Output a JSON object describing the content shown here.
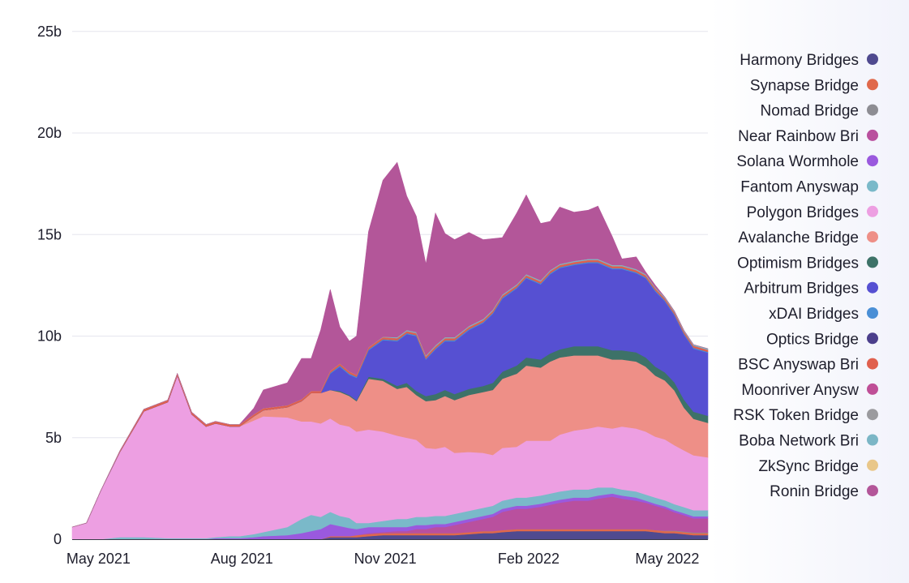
{
  "chart_data": {
    "type": "area",
    "stacked": true,
    "title": "",
    "xlabel": "",
    "ylabel": "",
    "x_range": [
      "2021-04-15",
      "2022-06-25"
    ],
    "ylim": [
      0,
      26
    ],
    "yticks": [
      {
        "value": 0,
        "label": "0"
      },
      {
        "value": 5,
        "label": "5b"
      },
      {
        "value": 10,
        "label": "10b"
      },
      {
        "value": 15,
        "label": "15b"
      },
      {
        "value": 20,
        "label": "20b"
      },
      {
        "value": 25,
        "label": "25b"
      }
    ],
    "xticks": [
      {
        "month": 0.55,
        "label": "May 2021"
      },
      {
        "month": 3.55,
        "label": "Aug 2021"
      },
      {
        "month": 6.55,
        "label": "Nov 2021"
      },
      {
        "month": 9.55,
        "label": "Feb 2022"
      },
      {
        "month": 12.45,
        "label": "May 2022"
      }
    ],
    "x_months": [
      0.0,
      0.3,
      0.6,
      1.0,
      1.5,
      2.0,
      2.2,
      2.5,
      2.8,
      3.0,
      3.3,
      3.5,
      3.8,
      4.0,
      4.5,
      4.8,
      5.0,
      5.2,
      5.4,
      5.6,
      5.8,
      5.95,
      6.2,
      6.5,
      6.8,
      7.0,
      7.2,
      7.4,
      7.6,
      7.8,
      8.0,
      8.3,
      8.6,
      8.8,
      9.0,
      9.3,
      9.5,
      9.8,
      10.0,
      10.2,
      10.5,
      10.8,
      11.0,
      11.3,
      11.5,
      11.8,
      12.0,
      12.2,
      12.4,
      12.6,
      12.8,
      13.0,
      13.3
    ],
    "series": [
      {
        "name": "Harmony Bridges",
        "color": "#4f4a8f",
        "values": [
          0,
          0,
          0,
          0,
          0,
          0,
          0,
          0,
          0,
          0,
          0,
          0,
          0,
          0,
          0,
          0,
          0,
          0,
          0.1,
          0.1,
          0.1,
          0.1,
          0.15,
          0.2,
          0.2,
          0.2,
          0.2,
          0.2,
          0.2,
          0.2,
          0.2,
          0.25,
          0.3,
          0.3,
          0.35,
          0.4,
          0.4,
          0.4,
          0.4,
          0.4,
          0.4,
          0.4,
          0.4,
          0.4,
          0.4,
          0.4,
          0.4,
          0.35,
          0.3,
          0.3,
          0.25,
          0.2,
          0.2
        ]
      },
      {
        "name": "Synapse Bridge",
        "color": "#e0694b",
        "values": [
          0,
          0,
          0,
          0,
          0,
          0,
          0,
          0,
          0,
          0,
          0,
          0,
          0,
          0,
          0,
          0,
          0,
          0,
          0.05,
          0.05,
          0.05,
          0.1,
          0.1,
          0.1,
          0.1,
          0.1,
          0.1,
          0.1,
          0.1,
          0.1,
          0.1,
          0.1,
          0.1,
          0.1,
          0.1,
          0.1,
          0.1,
          0.1,
          0.1,
          0.1,
          0.1,
          0.1,
          0.1,
          0.1,
          0.1,
          0.1,
          0.1,
          0.1,
          0.1,
          0.1,
          0.1,
          0.1,
          0.1
        ]
      },
      {
        "name": "Nomad Bridge",
        "color": "#8d8d93",
        "values": [
          0,
          0,
          0,
          0,
          0,
          0,
          0,
          0,
          0,
          0,
          0,
          0,
          0,
          0,
          0,
          0,
          0,
          0,
          0,
          0,
          0,
          0,
          0,
          0,
          0,
          0,
          0,
          0,
          0,
          0,
          0,
          0,
          0,
          0,
          0,
          0,
          0,
          0,
          0,
          0,
          0,
          0,
          0,
          0,
          0,
          0,
          0,
          0,
          0.02,
          0.03,
          0.03,
          0.03,
          0.03
        ]
      },
      {
        "name": "Near Rainbow Bridge",
        "color": "#b9509e",
        "values": [
          0,
          0,
          0,
          0,
          0,
          0,
          0,
          0,
          0,
          0,
          0,
          0,
          0,
          0,
          0,
          0,
          0,
          0,
          0,
          0,
          0,
          0,
          0.05,
          0.05,
          0.1,
          0.1,
          0.2,
          0.2,
          0.3,
          0.3,
          0.4,
          0.5,
          0.6,
          0.7,
          0.9,
          1.0,
          1.0,
          1.1,
          1.2,
          1.3,
          1.4,
          1.4,
          1.5,
          1.6,
          1.5,
          1.4,
          1.3,
          1.2,
          1.1,
          0.9,
          0.8,
          0.7,
          0.7
        ]
      },
      {
        "name": "Solana Wormhole",
        "color": "#9a59de",
        "values": [
          0,
          0,
          0,
          0,
          0,
          0,
          0,
          0,
          0,
          0.05,
          0.05,
          0.05,
          0.1,
          0.15,
          0.2,
          0.3,
          0.4,
          0.5,
          0.6,
          0.5,
          0.4,
          0.3,
          0.3,
          0.25,
          0.2,
          0.2,
          0.2,
          0.2,
          0.15,
          0.15,
          0.15,
          0.15,
          0.15,
          0.15,
          0.15,
          0.15,
          0.15,
          0.15,
          0.15,
          0.15,
          0.15,
          0.15,
          0.15,
          0.15,
          0.15,
          0.15,
          0.1,
          0.1,
          0.1,
          0.1,
          0.1,
          0.1,
          0.1
        ]
      },
      {
        "name": "Fantom Anyswap",
        "color": "#7ab9c9",
        "values": [
          0,
          0,
          0,
          0.1,
          0.1,
          0.05,
          0.05,
          0.05,
          0.05,
          0.05,
          0.1,
          0.1,
          0.15,
          0.2,
          0.4,
          0.7,
          0.8,
          0.6,
          0.6,
          0.5,
          0.5,
          0.3,
          0.2,
          0.3,
          0.4,
          0.4,
          0.4,
          0.4,
          0.4,
          0.4,
          0.4,
          0.4,
          0.4,
          0.4,
          0.4,
          0.4,
          0.4,
          0.4,
          0.4,
          0.4,
          0.4,
          0.4,
          0.4,
          0.3,
          0.3,
          0.3,
          0.3,
          0.3,
          0.3,
          0.3,
          0.3,
          0.3,
          0.3
        ]
      },
      {
        "name": "Polygon Bridges",
        "color": "#ed9fe2",
        "values": [
          0.6,
          0.8,
          2.4,
          4.2,
          6.2,
          6.7,
          8.0,
          6.1,
          5.5,
          5.6,
          5.4,
          5.4,
          5.6,
          5.7,
          5.4,
          4.8,
          4.6,
          4.6,
          4.6,
          4.5,
          4.5,
          4.5,
          4.6,
          4.4,
          4.1,
          4.0,
          3.8,
          3.4,
          3.3,
          3.4,
          3.0,
          2.9,
          2.7,
          2.5,
          2.6,
          2.5,
          2.8,
          2.7,
          2.6,
          2.8,
          2.9,
          3.0,
          3.0,
          2.9,
          3.1,
          3.1,
          3.1,
          3.0,
          3.0,
          2.9,
          2.8,
          2.7,
          2.6
        ]
      },
      {
        "name": "Avalanche Bridge",
        "color": "#ee8f87",
        "values": [
          0,
          0,
          0,
          0,
          0,
          0,
          0,
          0,
          0,
          0,
          0,
          0,
          0.2,
          0.3,
          0.5,
          1.0,
          1.4,
          1.5,
          1.4,
          1.6,
          1.5,
          1.5,
          2.5,
          2.5,
          2.3,
          2.5,
          2.2,
          2.3,
          2.4,
          2.5,
          2.6,
          2.8,
          3.0,
          3.2,
          3.4,
          3.6,
          3.7,
          3.6,
          3.9,
          3.8,
          3.7,
          3.6,
          3.5,
          3.4,
          3.3,
          3.3,
          3.2,
          3.0,
          2.9,
          2.7,
          2.1,
          1.8,
          1.7
        ]
      },
      {
        "name": "Optimism Bridges",
        "color": "#3d7268",
        "values": [
          0,
          0,
          0,
          0,
          0,
          0,
          0,
          0,
          0,
          0,
          0,
          0,
          0,
          0,
          0,
          0,
          0,
          0,
          0,
          0.05,
          0.05,
          0.05,
          0.1,
          0.1,
          0.15,
          0.2,
          0.2,
          0.25,
          0.3,
          0.3,
          0.3,
          0.3,
          0.3,
          0.35,
          0.35,
          0.4,
          0.4,
          0.4,
          0.4,
          0.4,
          0.45,
          0.45,
          0.45,
          0.45,
          0.45,
          0.45,
          0.45,
          0.45,
          0.4,
          0.4,
          0.4,
          0.35,
          0.35
        ]
      },
      {
        "name": "Arbitrum Bridges",
        "color": "#5650d2",
        "values": [
          0,
          0,
          0,
          0,
          0,
          0,
          0,
          0,
          0,
          0,
          0,
          0,
          0,
          0,
          0,
          0,
          0,
          0,
          0.8,
          1.2,
          1.0,
          1.1,
          1.3,
          1.9,
          2.2,
          2.4,
          2.7,
          1.8,
          2.2,
          2.4,
          2.6,
          2.9,
          3.1,
          3.4,
          3.6,
          3.8,
          3.9,
          3.7,
          3.9,
          4.0,
          4.0,
          4.1,
          4.1,
          4.0,
          4.0,
          3.9,
          3.9,
          3.7,
          3.5,
          3.3,
          3.2,
          3.1,
          3.1
        ]
      },
      {
        "name": "xDAI Bridges",
        "color": "#4a8fd6",
        "values": [
          0,
          0,
          0,
          0,
          0,
          0,
          0,
          0,
          0,
          0,
          0,
          0,
          0,
          0,
          0,
          0,
          0,
          0,
          0.05,
          0.05,
          0.05,
          0.05,
          0.05,
          0.05,
          0.05,
          0.05,
          0.05,
          0.05,
          0.05,
          0.05,
          0.05,
          0.05,
          0.05,
          0.05,
          0.05,
          0.05,
          0.05,
          0.05,
          0.05,
          0.05,
          0.05,
          0.05,
          0.05,
          0.05,
          0.05,
          0.05,
          0.05,
          0.05,
          0.05,
          0.05,
          0.05,
          0.05,
          0.05
        ]
      },
      {
        "name": "Optics Bridge",
        "color": "#4b3f8c",
        "values": [
          0,
          0,
          0,
          0,
          0,
          0,
          0,
          0,
          0,
          0,
          0,
          0,
          0,
          0,
          0,
          0,
          0,
          0,
          0,
          0,
          0,
          0,
          0,
          0,
          0,
          0,
          0,
          0,
          0,
          0,
          0,
          0,
          0,
          0,
          0,
          0,
          0,
          0,
          0,
          0,
          0,
          0,
          0,
          0,
          0,
          0,
          0,
          0,
          0,
          0,
          0,
          0,
          0
        ]
      },
      {
        "name": "BSC Anyswap Bridge",
        "color": "#e0604e",
        "values": [
          0,
          0,
          0,
          0.05,
          0.1,
          0.1,
          0.1,
          0.1,
          0.1,
          0.1,
          0.1,
          0.1,
          0.1,
          0.1,
          0.1,
          0.1,
          0.1,
          0.1,
          0.1,
          0.1,
          0.1,
          0.1,
          0.1,
          0.1,
          0.1,
          0.1,
          0.1,
          0.1,
          0.1,
          0.1,
          0.1,
          0.1,
          0.1,
          0.1,
          0.1,
          0.1,
          0.1,
          0.1,
          0.1,
          0.1,
          0.1,
          0.1,
          0.1,
          0.1,
          0.1,
          0.1,
          0.1,
          0.1,
          0.1,
          0.1,
          0.1,
          0.1,
          0.1
        ]
      },
      {
        "name": "Moonriver Anyswap",
        "color": "#bf4f97",
        "values": [
          0,
          0,
          0,
          0,
          0,
          0,
          0,
          0,
          0,
          0,
          0,
          0,
          0,
          0,
          0,
          0,
          0,
          0,
          0,
          0,
          0,
          0,
          0,
          0,
          0,
          0,
          0,
          0,
          0,
          0,
          0,
          0,
          0,
          0,
          0,
          0,
          0,
          0,
          0,
          0,
          0,
          0,
          0,
          0,
          0,
          0,
          0,
          0,
          0,
          0,
          0,
          0,
          0
        ]
      },
      {
        "name": "RSK Token Bridge",
        "color": "#9b9b9f",
        "values": [
          0,
          0,
          0,
          0,
          0,
          0,
          0,
          0,
          0,
          0,
          0,
          0,
          0,
          0,
          0,
          0,
          0,
          0,
          0,
          0,
          0,
          0,
          0,
          0,
          0,
          0,
          0,
          0,
          0,
          0,
          0,
          0,
          0,
          0,
          0,
          0,
          0,
          0,
          0,
          0,
          0,
          0,
          0,
          0,
          0,
          0,
          0,
          0,
          0,
          0,
          0,
          0,
          0
        ]
      },
      {
        "name": "Boba Network Bridge",
        "color": "#7bb6c6",
        "values": [
          0,
          0,
          0,
          0,
          0,
          0,
          0,
          0,
          0,
          0,
          0,
          0,
          0,
          0,
          0,
          0,
          0,
          0,
          0,
          0,
          0,
          0,
          0,
          0.02,
          0.05,
          0.05,
          0.05,
          0.05,
          0.05,
          0.05,
          0.05,
          0.05,
          0.05,
          0.05,
          0.05,
          0.05,
          0.05,
          0.05,
          0.05,
          0.05,
          0.05,
          0.05,
          0.05,
          0.05,
          0.05,
          0.05,
          0.05,
          0.05,
          0.05,
          0.05,
          0.05,
          0.05,
          0.05
        ]
      },
      {
        "name": "ZkSync Bridge",
        "color": "#e9c789",
        "values": [
          0,
          0,
          0,
          0,
          0,
          0,
          0,
          0,
          0,
          0,
          0,
          0,
          0,
          0,
          0,
          0,
          0,
          0,
          0,
          0,
          0,
          0,
          0,
          0,
          0,
          0,
          0,
          0,
          0,
          0,
          0,
          0,
          0,
          0,
          0,
          0,
          0,
          0,
          0,
          0,
          0,
          0,
          0,
          0,
          0,
          0,
          0,
          0,
          0,
          0,
          0,
          0,
          0
        ]
      },
      {
        "name": "Ronin Bridge",
        "color": "#b35699",
        "values": [
          0,
          0,
          0,
          0,
          0,
          0,
          0,
          0,
          0,
          0,
          0,
          0,
          0.3,
          0.9,
          1.1,
          2.0,
          1.6,
          3.0,
          4.0,
          1.8,
          1.5,
          1.9,
          5.7,
          7.7,
          8.6,
          6.6,
          5.7,
          4.5,
          6.5,
          5.1,
          4.8,
          4.6,
          3.9,
          3.5,
          2.8,
          3.5,
          3.9,
          2.8,
          2.4,
          2.8,
          2.4,
          2.4,
          2.6,
          1.4,
          0.3,
          0.6,
          0.1,
          0.1,
          0.0,
          0.0,
          0.0,
          0.0,
          0.0
        ]
      }
    ],
    "legend_position": "right",
    "grid": true
  },
  "legend": [
    {
      "label": "Harmony Bridges",
      "color": "#4f4a8f"
    },
    {
      "label": "Synapse Bridge",
      "color": "#e0694b"
    },
    {
      "label": "Nomad Bridge",
      "color": "#8d8d93"
    },
    {
      "label": "Near Rainbow Bri",
      "color": "#b9509e"
    },
    {
      "label": "Solana Wormhole",
      "color": "#9a59de"
    },
    {
      "label": "Fantom Anyswap",
      "color": "#7ab9c9"
    },
    {
      "label": "Polygon Bridges",
      "color": "#ed9fe2"
    },
    {
      "label": "Avalanche Bridge",
      "color": "#ee8f87"
    },
    {
      "label": "Optimism Bridges",
      "color": "#3d7268"
    },
    {
      "label": "Arbitrum Bridges",
      "color": "#5650d2"
    },
    {
      "label": "xDAI Bridges",
      "color": "#4a8fd6"
    },
    {
      "label": "Optics Bridge",
      "color": "#4b3f8c"
    },
    {
      "label": "BSC Anyswap Bri",
      "color": "#e0604e"
    },
    {
      "label": "Moonriver Anysw",
      "color": "#bf4f97"
    },
    {
      "label": "RSK Token Bridge",
      "color": "#9b9b9f"
    },
    {
      "label": "Boba Network Bri",
      "color": "#7bb6c6"
    },
    {
      "label": "ZkSync Bridge",
      "color": "#e9c789"
    },
    {
      "label": "Ronin Bridge",
      "color": "#b35699"
    }
  ]
}
